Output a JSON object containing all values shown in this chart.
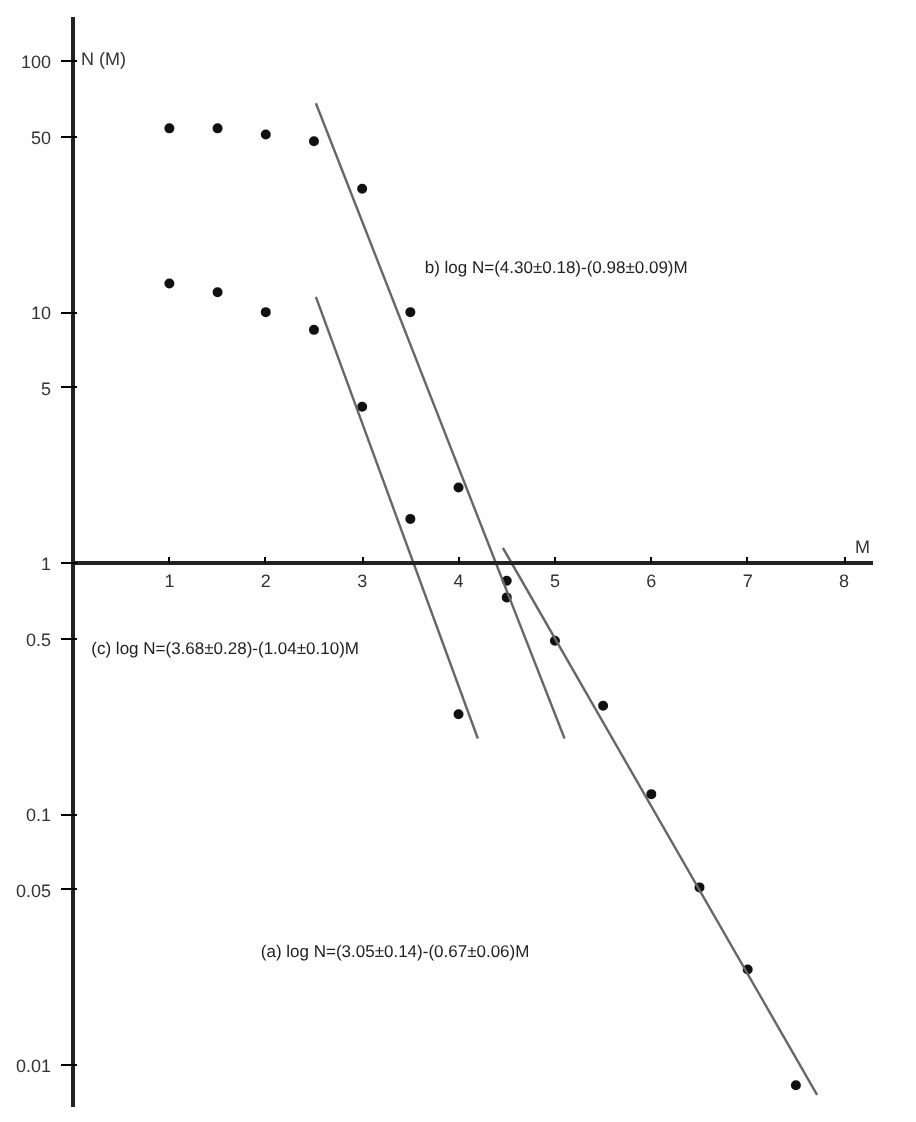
{
  "chart_data": {
    "type": "scatter",
    "xlabel": "M",
    "ylabel": "N (M)",
    "log": "y",
    "marker": "circle",
    "grid": false,
    "xlim": [
      0,
      8.3
    ],
    "ylim": [
      0.0068,
      150
    ],
    "xticks": [
      1,
      2,
      3,
      4,
      5,
      6,
      7,
      8
    ],
    "yticks": [
      0.01,
      0.05,
      0.1,
      0.5,
      1,
      5,
      10,
      50,
      100
    ],
    "series": [
      {
        "color": "#111111",
        "x": [
          1,
          1.5,
          2,
          2.5,
          3,
          3.5,
          4,
          4.5
        ],
        "values": [
          54,
          54,
          51,
          48,
          31,
          10,
          2,
          0.85
        ]
      },
      {
        "color": "#111111",
        "x": [
          1,
          1.5,
          2,
          2.5,
          3,
          3.5,
          4
        ],
        "values": [
          13,
          12,
          10,
          8.5,
          4.2,
          1.5,
          0.25
        ]
      },
      {
        "color": "#111111",
        "x": [
          4.5,
          5,
          5.5,
          6,
          6.5,
          7,
          7.5
        ],
        "values": [
          0.73,
          0.49,
          0.27,
          0.12,
          0.051,
          0.024,
          0.0083
        ]
      },
      {
        "type": "line",
        "marker": "none",
        "color": "#666666",
        "x": [
          2.52,
          5.1
        ],
        "values": [
          68,
          0.2
        ]
      },
      {
        "type": "line",
        "marker": "none",
        "color": "#666666",
        "x": [
          2.52,
          4.2
        ],
        "values": [
          11.5,
          0.2
        ]
      },
      {
        "type": "line",
        "marker": "none",
        "color": "#666666",
        "x": [
          4.46,
          7.72
        ],
        "values": [
          1.15,
          0.0076
        ]
      }
    ],
    "annotations": [
      "b) log N=(4.30±0.18)-(0.98±0.09)M",
      "(c) log N=(3.68±0.28)-(1.04±0.10)M",
      "(a) log N=(3.05±0.14)-(0.67±0.06)M"
    ]
  }
}
